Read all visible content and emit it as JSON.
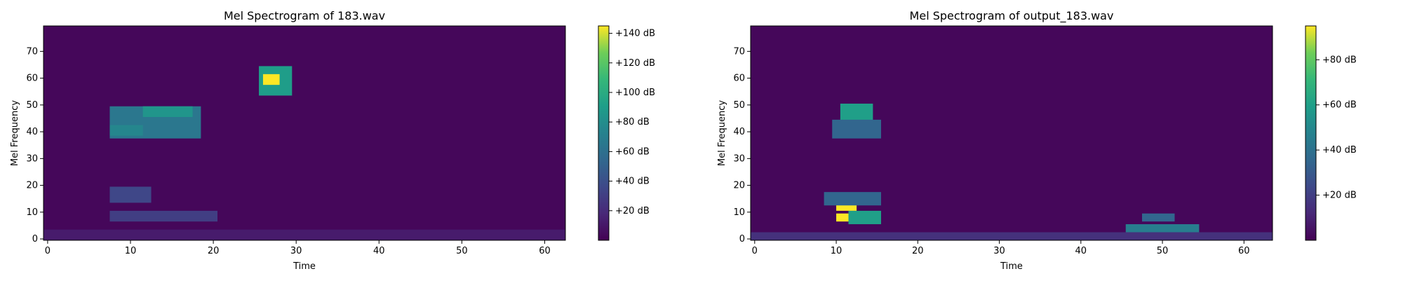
{
  "chart_data": [
    {
      "type": "heatmap",
      "title": "Mel Spectrogram of 183.wav",
      "xlabel": "Time",
      "ylabel": "Mel Frequency",
      "xlim": [
        -0.5,
        62.5
      ],
      "ylim": [
        -0.5,
        79.5
      ],
      "x_ticks": [
        "0",
        "10",
        "20",
        "30",
        "40",
        "50",
        "60"
      ],
      "y_ticks": [
        "0",
        "10",
        "20",
        "30",
        "40",
        "50",
        "60",
        "70"
      ],
      "colormap": "viridis",
      "colorbar": {
        "range_db": [
          0,
          145
        ],
        "ticks": [
          "+20 dB",
          "+40 dB",
          "+60 dB",
          "+80 dB",
          "+100 dB",
          "+120 dB",
          "+140 dB"
        ]
      },
      "regions": [
        {
          "t": [
            8,
            18
          ],
          "mel": [
            38,
            49
          ],
          "db": 65
        },
        {
          "t": [
            12,
            17
          ],
          "mel": [
            46,
            49
          ],
          "db": 85
        },
        {
          "t": [
            8,
            11
          ],
          "mel": [
            39,
            42
          ],
          "db": 75
        },
        {
          "t": [
            8,
            12
          ],
          "mel": [
            14,
            19
          ],
          "db": 35
        },
        {
          "t": [
            8,
            20
          ],
          "mel": [
            7,
            10
          ],
          "db": 30
        },
        {
          "t": [
            26,
            29
          ],
          "mel": [
            54,
            64
          ],
          "db": 90
        },
        {
          "t": [
            26.5,
            27.5
          ],
          "mel": [
            58,
            61
          ],
          "db": 145
        },
        {
          "t": [
            0,
            62
          ],
          "mel": [
            0,
            3
          ],
          "db": 12
        }
      ]
    },
    {
      "type": "heatmap",
      "title": "Mel Spectrogram of output_183.wav",
      "xlabel": "Time",
      "ylabel": "Mel Frequency",
      "xlim": [
        -0.5,
        63.5
      ],
      "ylim": [
        -0.5,
        79.5
      ],
      "x_ticks": [
        "0",
        "10",
        "20",
        "30",
        "40",
        "50",
        "60"
      ],
      "y_ticks": [
        "0",
        "10",
        "20",
        "30",
        "40",
        "50",
        "60",
        "70"
      ],
      "colormap": "viridis",
      "colorbar": {
        "range_db": [
          0,
          95
        ],
        "ticks": [
          "+20 dB",
          "+40 dB",
          "+60 dB",
          "+80 dB"
        ]
      },
      "regions": [
        {
          "t": [
            11,
            14
          ],
          "mel": [
            44,
            50
          ],
          "db": 60
        },
        {
          "t": [
            10,
            15
          ],
          "mel": [
            38,
            44
          ],
          "db": 35
        },
        {
          "t": [
            10.5,
            12
          ],
          "mel": [
            11,
            13
          ],
          "db": 95
        },
        {
          "t": [
            10.5,
            12
          ],
          "mel": [
            7,
            9
          ],
          "db": 95
        },
        {
          "t": [
            12,
            15
          ],
          "mel": [
            6,
            10
          ],
          "db": 60
        },
        {
          "t": [
            9,
            15
          ],
          "mel": [
            13,
            17
          ],
          "db": 35
        },
        {
          "t": [
            46,
            54
          ],
          "mel": [
            0,
            5
          ],
          "db": 45
        },
        {
          "t": [
            48,
            51
          ],
          "mel": [
            7,
            9
          ],
          "db": 35
        },
        {
          "t": [
            0,
            63
          ],
          "mel": [
            0,
            2
          ],
          "db": 15
        }
      ]
    }
  ]
}
